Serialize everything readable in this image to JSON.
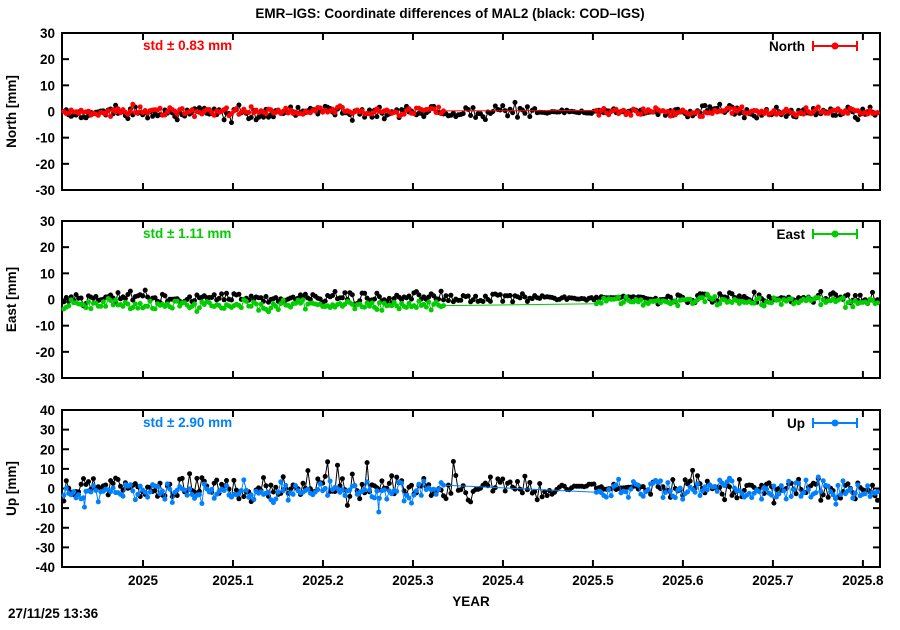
{
  "title": "EMR–IGS: Coordinate differences of MAL2 (black: COD–IGS)",
  "timestamp": "27/11/25 13:36",
  "xlabel": "YEAR",
  "colors": {
    "north_series": "#ff0000",
    "east_series": "#00cc00",
    "up_series": "#0080ff",
    "reference_series": "#000000",
    "axis": "#000000",
    "background": "#ffffff"
  },
  "chart_data": {
    "type": "scatter",
    "title": "EMR–IGS: Coordinate differences of MAL2 (black: COD–IGS)",
    "xlabel": "YEAR",
    "x_axis": {
      "min": 2024.91,
      "max": 2025.819,
      "ticks": [
        2025,
        2025.1,
        2025.2,
        2025.3,
        2025.4,
        2025.5,
        2025.6,
        2025.7,
        2025.8
      ],
      "tick_labels": [
        "2025",
        "2025.1",
        "2025.2",
        "2025.3",
        "2025.4",
        "2025.5",
        "2025.6",
        "2025.7",
        "2025.8"
      ]
    },
    "sampling_step_years": 0.00274,
    "panels": [
      {
        "name": "North",
        "ylabel": "North [mm]",
        "ylim": [
          -30,
          30
        ],
        "yticks": [
          30,
          20,
          10,
          0,
          -10,
          -20,
          -30
        ],
        "ytick_labels": [
          "30",
          "20",
          "10",
          "0",
          "-10",
          "-20",
          "-30"
        ],
        "std_label": "std ± 0.83 mm",
        "std_value_mm": 0.83,
        "legend_label": "North",
        "color": "#ff0000",
        "series": [
          {
            "name": "COD-IGS",
            "color": "#000000",
            "seed": 11,
            "mean": -0.4,
            "mean_split": 2025.35,
            "mean_right": -0.1,
            "std": 1.1,
            "wander": 0.7,
            "tight": [
              2025.44,
              2025.57
            ],
            "gap": null,
            "spikes": null,
            "outliers": []
          },
          {
            "name": "EMR-IGS",
            "color": "#ff0000",
            "seed": 12,
            "mean": 0.1,
            "mean_split": 2025.4,
            "mean_right": 0.0,
            "std": 0.75,
            "wander": 0.45,
            "tight": null,
            "gap": [
              2025.336,
              2025.503
            ],
            "spikes": null,
            "outliers": []
          }
        ]
      },
      {
        "name": "East",
        "ylabel": "East [mm]",
        "ylim": [
          -30,
          30
        ],
        "yticks": [
          30,
          20,
          10,
          0,
          -10,
          -20,
          -30
        ],
        "ytick_labels": [
          "30",
          "20",
          "10",
          "0",
          "-10",
          "-20",
          "-30"
        ],
        "std_label": "std ± 1.11 mm",
        "std_value_mm": 1.11,
        "legend_label": "East",
        "color": "#00cc00",
        "series": [
          {
            "name": "COD-IGS",
            "color": "#000000",
            "seed": 21,
            "mean": 0.8,
            "mean_split": 2025.4,
            "mean_right": 0.6,
            "std": 1.0,
            "wander": 0.7,
            "tight": [
              2025.44,
              2025.57
            ],
            "gap": null,
            "spikes": null,
            "outliers": []
          },
          {
            "name": "EMR-IGS",
            "color": "#00cc00",
            "seed": 22,
            "mean": -2.1,
            "mean_split": 2025.4,
            "mean_right": -0.6,
            "std": 0.9,
            "wander": 0.5,
            "tight": null,
            "gap": [
              2025.336,
              2025.503
            ],
            "spikes": null,
            "outliers": []
          }
        ]
      },
      {
        "name": "Up",
        "ylabel": "Up [mm]",
        "ylim": [
          -40,
          40
        ],
        "yticks": [
          40,
          30,
          20,
          10,
          0,
          -10,
          -20,
          -30,
          -40
        ],
        "ytick_labels": [
          "40",
          "30",
          "20",
          "10",
          "0",
          "-10",
          "-20",
          "-30",
          "-40"
        ],
        "std_label": "std ± 2.90 mm",
        "std_value_mm": 2.9,
        "legend_label": "Up",
        "color": "#0080ff",
        "series": [
          {
            "name": "COD-IGS",
            "color": "#000000",
            "seed": 31,
            "mean": 0.3,
            "mean_split": null,
            "mean_right": 0.3,
            "std": 3.0,
            "wander": 1.8,
            "tight": [
              2025.45,
              2025.56
            ],
            "gap": null,
            "spikes": {
              "range": [
                2025.2,
                2025.44
              ],
              "prob": 0.06,
              "min": 5,
              "max": 11
            },
            "outliers": []
          },
          {
            "name": "EMR-IGS",
            "color": "#0080ff",
            "seed": 32,
            "mean": -1.8,
            "mean_split": 2025.5,
            "mean_right": -0.8,
            "std": 2.4,
            "wander": 1.4,
            "tight": null,
            "gap": [
              2025.336,
              2025.503
            ],
            "spikes": null,
            "outliers": [
              [
                2025.262,
                -12
              ],
              [
                2024.935,
                -9.5
              ],
              [
                2025.77,
                -8
              ]
            ]
          }
        ]
      }
    ]
  }
}
